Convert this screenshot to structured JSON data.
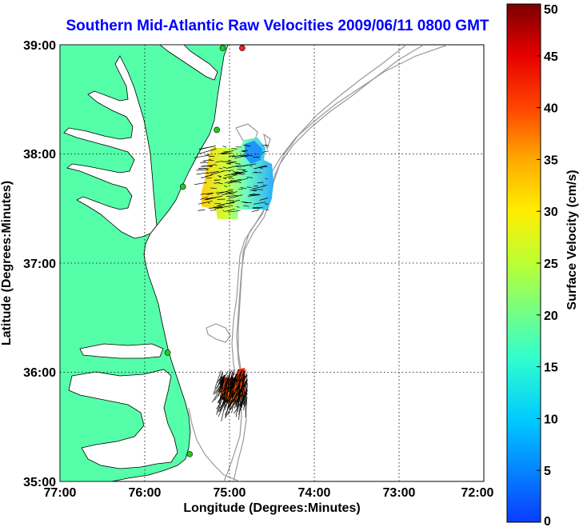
{
  "title": "Southern Mid-Atlantic Raw Velocities 2009/06/11 0800 GMT",
  "axes": {
    "xlabel": "Longitude (Degrees:Minutes)",
    "ylabel": "Latitude (Degrees:Minutes)",
    "x_ticks": [
      "77:00",
      "76:00",
      "75:00",
      "74:00",
      "73:00",
      "72:00"
    ],
    "y_ticks": [
      "39:00",
      "38:00",
      "37:00",
      "36:00",
      "35:00"
    ],
    "xlim": [
      -77,
      -72
    ],
    "ylim": [
      35,
      39
    ],
    "grid": "dotted"
  },
  "colorbar": {
    "label": "Surface Velocity (cm/s)",
    "ticks": [
      "50",
      "45",
      "40",
      "35",
      "30",
      "25",
      "20",
      "15",
      "10",
      "5",
      "0"
    ],
    "range": [
      0,
      50
    ]
  },
  "colors": {
    "land": "#55ffaa",
    "title": "#0000ff",
    "coastline": "#000000",
    "bathymetry": "#999999",
    "station_green": "#22cc22",
    "station_red": "#ee2222"
  },
  "chart_data": {
    "type": "map",
    "title": "Southern Mid-Atlantic Raw Velocities 2009/06/11 0800 GMT",
    "xlabel": "Longitude (Degrees:Minutes)",
    "ylabel": "Latitude (Degrees:Minutes)",
    "xlim": [
      -77,
      -72
    ],
    "ylim": [
      35,
      39
    ],
    "stations": [
      {
        "lon": -74.85,
        "lat": 38.97,
        "status": "red"
      },
      {
        "lon": -75.08,
        "lat": 38.97,
        "status": "green"
      },
      {
        "lon": -75.15,
        "lat": 38.22,
        "status": "green"
      },
      {
        "lon": -75.55,
        "lat": 37.7,
        "status": "green"
      },
      {
        "lon": -75.73,
        "lat": 36.18,
        "status": "green"
      },
      {
        "lon": -75.47,
        "lat": 35.25,
        "status": "green"
      }
    ],
    "velocity_fields": [
      {
        "region": "north",
        "lon_range": [
          -75.2,
          -74.5
        ],
        "lat_range": [
          37.45,
          38.1
        ],
        "speed_range_cm_s": [
          5,
          30
        ]
      },
      {
        "region": "south",
        "lon_range": [
          -75.1,
          -74.8
        ],
        "lat_range": [
          35.5,
          35.95
        ],
        "speed_range_cm_s": [
          35,
          50
        ]
      }
    ]
  }
}
